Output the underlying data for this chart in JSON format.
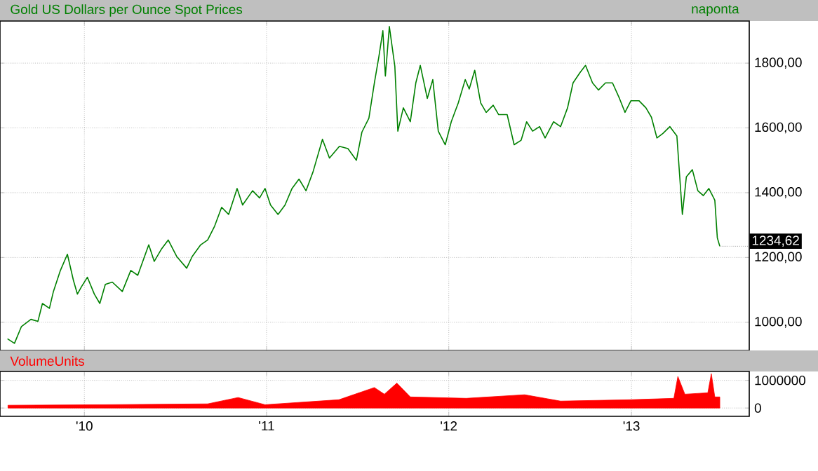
{
  "chart_data": [
    {
      "type": "line",
      "title": "Gold US Dollars per Ounce Spot Prices",
      "subtitle": "naponta",
      "x": [
        "2009-07-31",
        "2009-08-14",
        "2009-08-28",
        "2009-09-16",
        "2009-09-30",
        "2009-10-09",
        "2009-10-23",
        "2009-10-31",
        "2009-11-14",
        "2009-11-28",
        "2009-12-10",
        "2009-12-18",
        "2009-12-26",
        "2010-01-07",
        "2010-01-21",
        "2010-02-01",
        "2010-02-12",
        "2010-02-26",
        "2010-03-18",
        "2010-04-04",
        "2010-04-18",
        "2010-05-10",
        "2010-05-21",
        "2010-06-04",
        "2010-06-18",
        "2010-07-05",
        "2010-07-25",
        "2010-08-05",
        "2010-08-22",
        "2010-09-05",
        "2010-09-19",
        "2010-10-03",
        "2010-10-17",
        "2010-11-03",
        "2010-11-14",
        "2010-12-04",
        "2010-12-18",
        "2010-12-29",
        "2011-01-09",
        "2011-01-24",
        "2011-02-07",
        "2011-02-21",
        "2011-03-07",
        "2011-03-21",
        "2011-04-04",
        "2011-04-23",
        "2011-05-07",
        "2011-05-27",
        "2011-06-13",
        "2011-06-30",
        "2011-07-11",
        "2011-07-25",
        "2011-08-05",
        "2011-08-14",
        "2011-08-22",
        "2011-08-27",
        "2011-09-04",
        "2011-09-15",
        "2011-09-21",
        "2011-10-02",
        "2011-10-16",
        "2011-10-27",
        "2011-11-05",
        "2011-11-19",
        "2011-11-30",
        "2011-12-11",
        "2011-12-25",
        "2012-01-06",
        "2012-01-20",
        "2012-02-03",
        "2012-02-11",
        "2012-02-22",
        "2012-03-05",
        "2012-03-16",
        "2012-03-30",
        "2012-04-10",
        "2012-04-27",
        "2012-05-11",
        "2012-05-25",
        "2012-06-05",
        "2012-06-17",
        "2012-07-01",
        "2012-07-12",
        "2012-07-29",
        "2012-08-12",
        "2012-08-26",
        "2012-09-06",
        "2012-09-20",
        "2012-10-01",
        "2012-10-15",
        "2012-10-27",
        "2012-11-10",
        "2012-11-24",
        "2012-12-08",
        "2012-12-19",
        "2012-12-31",
        "2013-01-16",
        "2013-01-30",
        "2013-02-10",
        "2013-02-21",
        "2013-03-05",
        "2013-03-19",
        "2013-04-02",
        "2013-04-13",
        "2013-04-21",
        "2013-05-03",
        "2013-05-14",
        "2013-05-25",
        "2013-06-05",
        "2013-06-17",
        "2013-06-22",
        "2013-06-27"
      ],
      "series": [
        {
          "color": "#008000",
          "values": [
            949,
            935,
            987,
            1009,
            1003,
            1058,
            1043,
            1095,
            1160,
            1210,
            1130,
            1087,
            1109,
            1139,
            1087,
            1058,
            1117,
            1124,
            1095,
            1160,
            1145,
            1239,
            1188,
            1225,
            1254,
            1203,
            1167,
            1203,
            1239,
            1254,
            1297,
            1355,
            1333,
            1413,
            1362,
            1406,
            1384,
            1413,
            1362,
            1333,
            1362,
            1413,
            1442,
            1406,
            1464,
            1565,
            1507,
            1543,
            1536,
            1500,
            1587,
            1630,
            1739,
            1820,
            1900,
            1760,
            1913,
            1790,
            1590,
            1662,
            1619,
            1739,
            1793,
            1691,
            1749,
            1590,
            1548,
            1619,
            1677,
            1749,
            1720,
            1778,
            1677,
            1648,
            1670,
            1641,
            1641,
            1548,
            1562,
            1619,
            1590,
            1604,
            1569,
            1619,
            1604,
            1662,
            1739,
            1771,
            1793,
            1739,
            1717,
            1739,
            1739,
            1691,
            1648,
            1684,
            1684,
            1662,
            1633,
            1569,
            1583,
            1604,
            1575,
            1333,
            1449,
            1471,
            1406,
            1391,
            1413,
            1377,
            1261,
            1234.62
          ]
        }
      ],
      "xlim": [
        "2009-07-16",
        "2013-08-25"
      ],
      "xticks": [
        {
          "value": "2010-01-01",
          "label": null
        },
        {
          "value": "2011-01-01",
          "label": null
        },
        {
          "value": "2012-01-01",
          "label": null
        },
        {
          "value": "2013-01-01",
          "label": null
        }
      ],
      "ylim": [
        913,
        1930
      ],
      "yticks": [
        {
          "value": 1000,
          "label": "1000,00"
        },
        {
          "value": 1200,
          "label": "1200,00"
        },
        {
          "value": 1400,
          "label": "1400,00"
        },
        {
          "value": 1600,
          "label": "1600,00"
        },
        {
          "value": 1800,
          "label": "1800,00"
        }
      ],
      "grid": true,
      "tick_labels": "y",
      "annotations": [
        {
          "text": "1234,62",
          "x": "2013-06-27",
          "y": 1234.62
        }
      ]
    },
    {
      "type": "area",
      "title": "VolumeUnits",
      "x": [
        "2009-08-01",
        "2010-02-09",
        "2010-09-05",
        "2010-11-05",
        "2010-12-29",
        "2011-05-26",
        "2011-08-05",
        "2011-08-25",
        "2011-09-19",
        "2011-10-16",
        "2012-02-05",
        "2012-06-01",
        "2012-08-12",
        "2012-12-31",
        "2013-03-27",
        "2013-04-04",
        "2013-04-18",
        "2013-06-03",
        "2013-06-10",
        "2013-06-17",
        "2013-06-27"
      ],
      "series": [
        {
          "color": "#ff0000",
          "values": [
            100000,
            120000,
            150000,
            380000,
            120000,
            300000,
            740000,
            500000,
            900000,
            400000,
            350000,
            480000,
            250000,
            300000,
            350000,
            1140000,
            500000,
            550000,
            1240000,
            400000,
            400000
          ]
        }
      ],
      "xlim": [
        "2009-07-16",
        "2013-08-25"
      ],
      "xticks": [
        {
          "value": "2010-01-01",
          "label": "'10"
        },
        {
          "value": "2011-01-01",
          "label": "'11"
        },
        {
          "value": "2012-01-01",
          "label": "'12"
        },
        {
          "value": "2013-01-01",
          "label": "'13"
        }
      ],
      "ylim": [
        -300000,
        1320000
      ],
      "yticks": [
        0,
        1000000
      ],
      "grid": true
    }
  ]
}
